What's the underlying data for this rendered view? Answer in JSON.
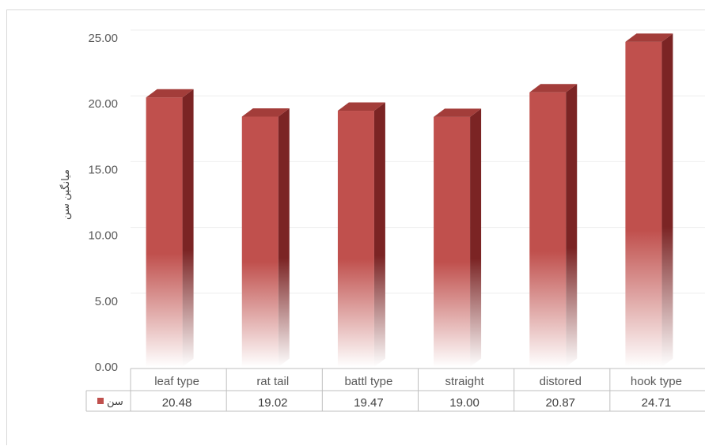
{
  "chart_data": {
    "type": "bar",
    "categories": [
      "leaf type",
      "rat tail",
      "battl type",
      "straight",
      "distored",
      "hook type"
    ],
    "series": [
      {
        "name": "سن",
        "values": [
          20.48,
          19.02,
          19.47,
          19.0,
          20.87,
          24.71
        ]
      }
    ],
    "value_labels": [
      "20.48",
      "19.02",
      "19.47",
      "19.00",
      "20.87",
      "24.71"
    ],
    "yticks": [
      "0.00",
      "5.00",
      "10.00",
      "15.00",
      "20.00",
      "25.00"
    ],
    "ylabel": "میانگین سن",
    "xlabel": "",
    "title": "",
    "ylim": [
      0,
      25
    ],
    "grid": true,
    "legend": "data-table",
    "style": "3d-column-gradient",
    "colors": {
      "bar_face": "#c0504d",
      "bar_side": "#7b2424",
      "bar_top": "#a33d3a",
      "grid": "#eeeeee",
      "table_border": "#bfbfbf"
    }
  }
}
